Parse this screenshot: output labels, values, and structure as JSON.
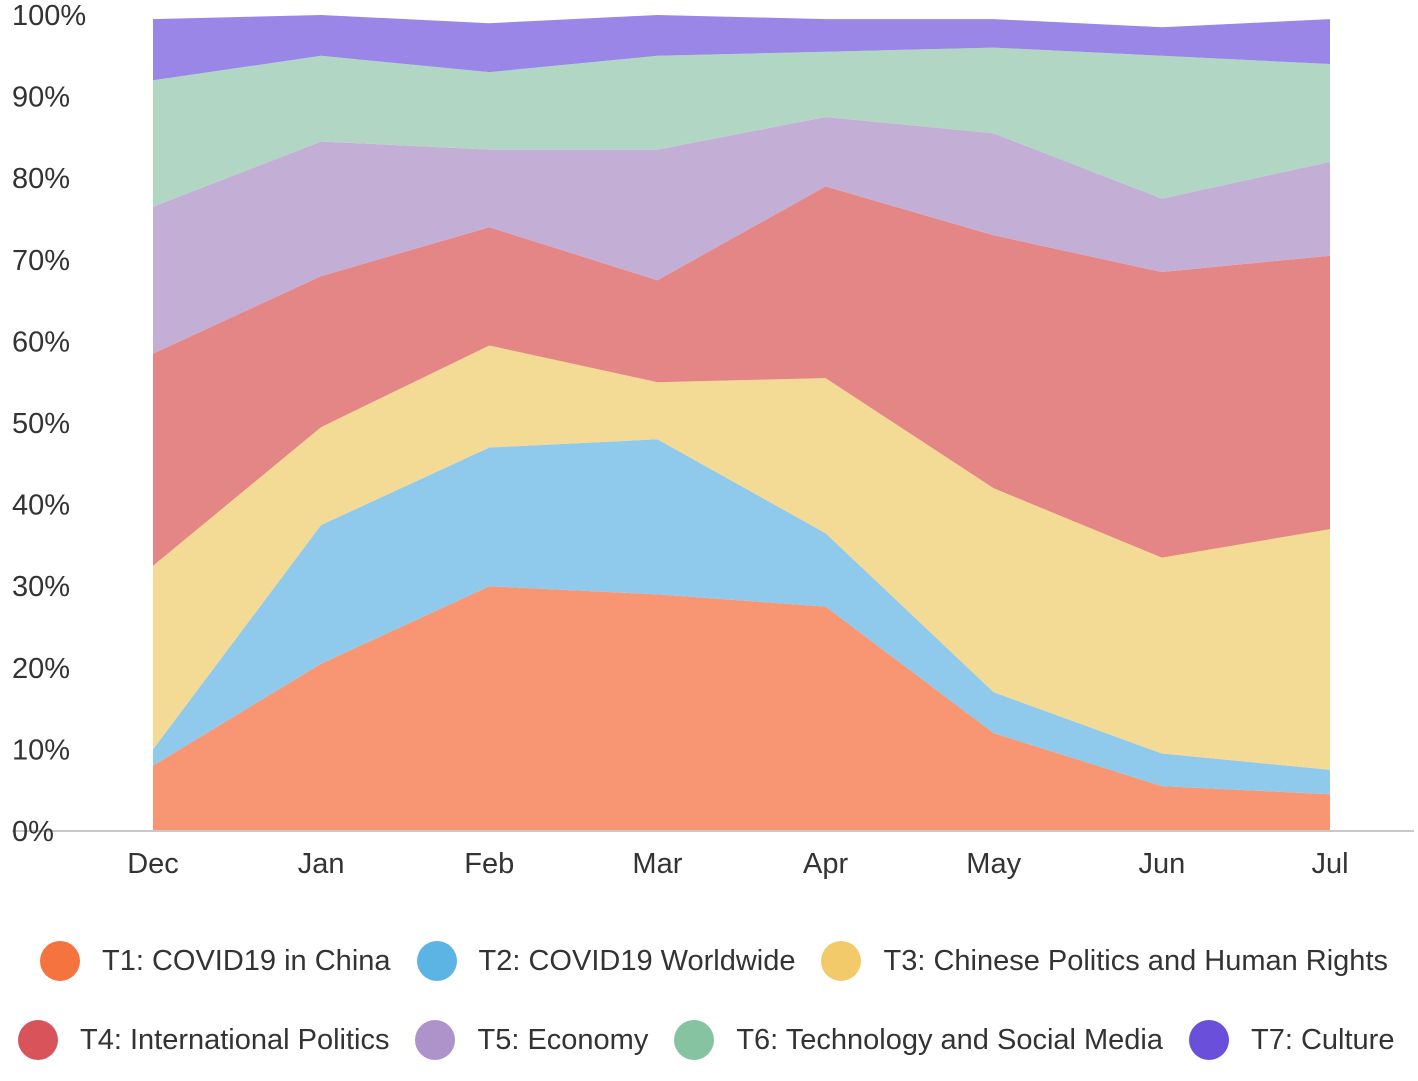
{
  "chart_data": {
    "type": "area",
    "stacked": true,
    "title": "",
    "xlabel": "",
    "ylabel": "",
    "x": [
      "Dec",
      "Jan",
      "Feb",
      "Mar",
      "Apr",
      "May",
      "Jun",
      "Jul"
    ],
    "ylim": [
      0,
      100
    ],
    "yticks": [
      "0%",
      "10%",
      "20%",
      "30%",
      "40%",
      "50%",
      "60%",
      "70%",
      "80%",
      "90%",
      "100%"
    ],
    "grid": false,
    "legend_position": "bottom",
    "series": [
      {
        "name": "T1: COVID19 in China",
        "color": "#f4733f",
        "area_color": "#f89572",
        "values": [
          8,
          20.5,
          30,
          29,
          27.5,
          12,
          5.5,
          4.5
        ]
      },
      {
        "name": "T2: COVID19 Worldwide",
        "color": "#5cb4e4",
        "area_color": "#8fcaec",
        "values": [
          2,
          17,
          17,
          19,
          9,
          5,
          4,
          3
        ]
      },
      {
        "name": "T3: Chinese Politics and Human Rights",
        "color": "#f2ca6a",
        "area_color": "#f3da95",
        "values": [
          22.5,
          12,
          12.5,
          7,
          19,
          25,
          24,
          29.5
        ]
      },
      {
        "name": "T4: International Politics",
        "color": "#d9545a",
        "area_color": "#e58686",
        "values": [
          26,
          18.5,
          14.5,
          12.5,
          23.5,
          31,
          35,
          33.5
        ]
      },
      {
        "name": "T5: Economy",
        "color": "#ae93cb",
        "area_color": "#c3afd6",
        "values": [
          18,
          16.5,
          9.5,
          16,
          8.5,
          12.5,
          9,
          11.5
        ]
      },
      {
        "name": "T6: Technology and Social Media",
        "color": "#86c3a1",
        "area_color": "#b1d6c3",
        "values": [
          15.5,
          10.5,
          9.5,
          11.5,
          8,
          10.5,
          17.5,
          12
        ]
      },
      {
        "name": "T7: Culture",
        "color": "#6a4fdb",
        "area_color": "#9a86e6",
        "values": [
          7.5,
          5,
          6,
          5,
          4,
          3.5,
          3.5,
          5.5
        ]
      }
    ]
  }
}
